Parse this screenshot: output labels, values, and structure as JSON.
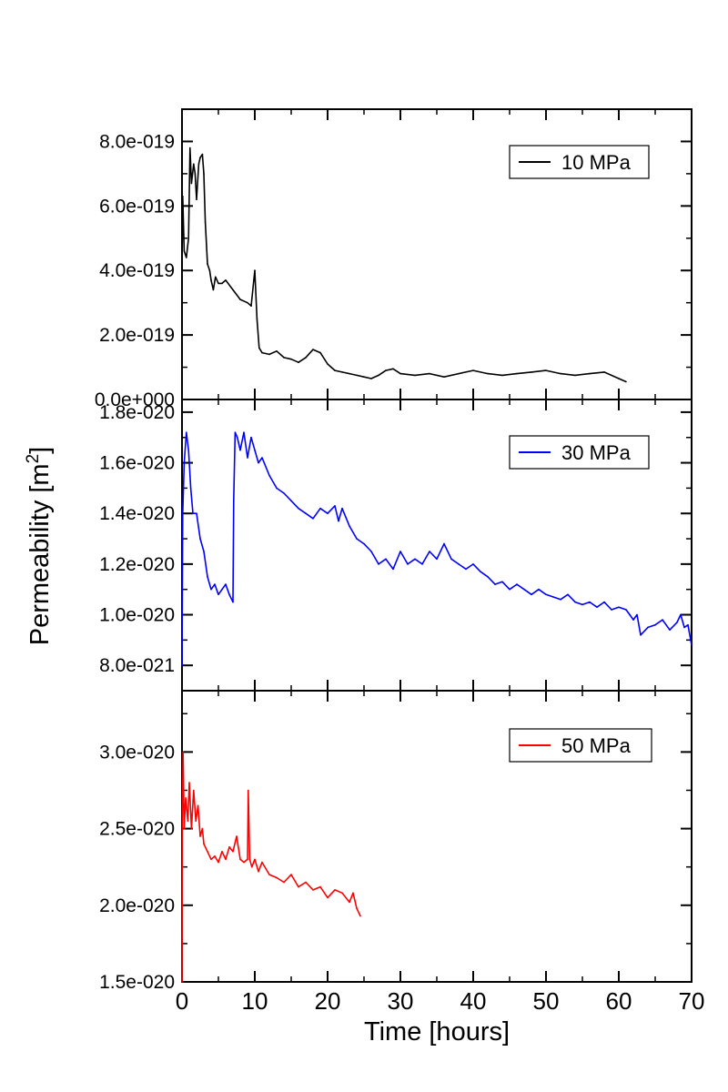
{
  "chart_data": {
    "type": "line",
    "xlabel": "Time [hours]",
    "ylabel": "Permeability [m",
    "ylabel_superscript": "2",
    "ylabel_close": "]",
    "xlim": [
      0,
      70
    ],
    "x_ticks": [
      0,
      10,
      20,
      30,
      40,
      50,
      60,
      70
    ],
    "x_tick_labels": [
      "0",
      "10",
      "20",
      "30",
      "40",
      "50",
      "60",
      "70"
    ],
    "grid": false,
    "legend_position": "top-right",
    "panels": [
      {
        "ylim": [
          0,
          9e-19
        ],
        "y_ticks": [
          0,
          2e-19,
          4e-19,
          6e-19,
          8e-19
        ],
        "y_tick_labels": [
          "0.0e+000",
          "2.0e-019",
          "4.0e-019",
          "6.0e-019",
          "8.0e-019"
        ],
        "series": [
          {
            "name": "10 MPa",
            "color": "#000000",
            "x": [
              0,
              0.1,
              0.3,
              0.6,
              0.9,
              1.1,
              1.3,
              1.6,
              1.8,
              2.0,
              2.3,
              2.5,
              2.8,
              3.0,
              3.2,
              3.5,
              3.8,
              4.0,
              4.3,
              4.6,
              5.0,
              5.5,
              6.0,
              7.0,
              8.0,
              9.0,
              9.5,
              10.0,
              10.3,
              10.6,
              11.0,
              12.0,
              13.0,
              14.0,
              15.0,
              16.0,
              17.0,
              18.0,
              19.0,
              20.0,
              21.0,
              22.0,
              23.0,
              24.0,
              25.0,
              26.0,
              27.0,
              28.0,
              29.0,
              30.0,
              32.0,
              34.0,
              36.0,
              38.0,
              40.0,
              42.0,
              44.0,
              46.0,
              48.0,
              50.0,
              52.0,
              54.0,
              56.0,
              58.0,
              60.0,
              61.0
            ],
            "y": [
              4.2e-19,
              6.3e-19,
              4.6e-19,
              4.4e-19,
              5e-19,
              7.8e-19,
              6.7e-19,
              7.3e-19,
              7e-19,
              6.2e-19,
              7.3e-19,
              7.5e-19,
              7.6e-19,
              7e-19,
              5.5e-19,
              4.2e-19,
              4e-19,
              3.7e-19,
              3.4e-19,
              3.8e-19,
              3.6e-19,
              3.6e-19,
              3.7e-19,
              3.4e-19,
              3.1e-19,
              3e-19,
              2.9e-19,
              4e-19,
              2.5e-19,
              1.6e-19,
              1.45e-19,
              1.4e-19,
              1.5e-19,
              1.3e-19,
              1.25e-19,
              1.15e-19,
              1.3e-19,
              1.55e-19,
              1.45e-19,
              1.1e-19,
              9e-20,
              8.5e-20,
              8e-20,
              7.5e-20,
              7e-20,
              6.5e-20,
              7.5e-20,
              9e-20,
              9.5e-20,
              8e-20,
              7.5e-20,
              8e-20,
              7e-20,
              8e-20,
              9e-20,
              8e-20,
              7.5e-20,
              8e-20,
              8.5e-20,
              9e-20,
              8e-20,
              7.5e-20,
              8e-20,
              8.5e-20,
              6.5e-20,
              5.5e-20
            ]
          }
        ]
      },
      {
        "ylim": [
          7e-21,
          1.85e-20
        ],
        "y_ticks": [
          8e-21,
          1e-20,
          1.2e-20,
          1.4e-20,
          1.6e-20,
          1.8e-20
        ],
        "y_tick_labels": [
          "8.0e-021",
          "1.0e-020",
          "1.2e-020",
          "1.4e-020",
          "1.6e-020",
          "1.8e-020"
        ],
        "series": [
          {
            "name": "30 MPa",
            "color": "#0000ff",
            "x": [
              0,
              0.1,
              0.3,
              0.6,
              0.9,
              1.2,
              1.5,
              2.0,
              2.5,
              3.0,
              3.5,
              4.0,
              4.5,
              5.0,
              5.5,
              6.0,
              6.5,
              7.0,
              7.1,
              7.3,
              7.6,
              8.0,
              8.5,
              9.0,
              9.5,
              10.0,
              10.5,
              11.0,
              12.0,
              13.0,
              14.0,
              15.0,
              16.0,
              17.0,
              18.0,
              19.0,
              20.0,
              21.0,
              21.5,
              22.0,
              23.0,
              24.0,
              25.0,
              26.0,
              27.0,
              28.0,
              29.0,
              30.0,
              31.0,
              32.0,
              33.0,
              34.0,
              35.0,
              36.0,
              37.0,
              38.0,
              39.0,
              40.0,
              41.0,
              42.0,
              43.0,
              44.0,
              45.0,
              46.0,
              47.0,
              48.0,
              49.0,
              50.0,
              51.0,
              52.0,
              53.0,
              54.0,
              55.0,
              56.0,
              57.0,
              58.0,
              59.0,
              60.0,
              61.0,
              61.5,
              62.0,
              62.5,
              63.0,
              64.0,
              65.0,
              66.0,
              67.0,
              68.0,
              68.5,
              69.0,
              69.5,
              70.0
            ],
            "y": [
              8e-21,
              1.4e-20,
              1.6e-20,
              1.72e-20,
              1.65e-20,
              1.5e-20,
              1.4e-20,
              1.4e-20,
              1.3e-20,
              1.25e-20,
              1.15e-20,
              1.1e-20,
              1.12e-20,
              1.08e-20,
              1.1e-20,
              1.12e-20,
              1.08e-20,
              1.05e-20,
              1.45e-20,
              1.72e-20,
              1.7e-20,
              1.65e-20,
              1.72e-20,
              1.62e-20,
              1.7e-20,
              1.65e-20,
              1.6e-20,
              1.62e-20,
              1.55e-20,
              1.5e-20,
              1.48e-20,
              1.45e-20,
              1.42e-20,
              1.4e-20,
              1.38e-20,
              1.42e-20,
              1.4e-20,
              1.43e-20,
              1.37e-20,
              1.42e-20,
              1.35e-20,
              1.3e-20,
              1.28e-20,
              1.25e-20,
              1.2e-20,
              1.22e-20,
              1.18e-20,
              1.25e-20,
              1.2e-20,
              1.22e-20,
              1.2e-20,
              1.25e-20,
              1.22e-20,
              1.28e-20,
              1.22e-20,
              1.2e-20,
              1.18e-20,
              1.2e-20,
              1.17e-20,
              1.15e-20,
              1.12e-20,
              1.13e-20,
              1.1e-20,
              1.12e-20,
              1.1e-20,
              1.08e-20,
              1.1e-20,
              1.08e-20,
              1.07e-20,
              1.06e-20,
              1.08e-20,
              1.05e-20,
              1.04e-20,
              1.05e-20,
              1.03e-20,
              1.05e-20,
              1.02e-20,
              1.03e-20,
              1.02e-20,
              1e-20,
              9.8e-21,
              1e-20,
              9.2e-21,
              9.5e-21,
              9.6e-21,
              9.8e-21,
              9.4e-21,
              9.7e-21,
              1e-20,
              9.5e-21,
              9.6e-21,
              8.8e-21
            ]
          }
        ]
      },
      {
        "ylim": [
          1.5e-20,
          3.4e-20
        ],
        "y_ticks": [
          1.5e-20,
          2e-20,
          2.5e-20,
          3e-20
        ],
        "y_tick_labels": [
          "1.5e-020",
          "2.0e-020",
          "2.5e-020",
          "3.0e-020"
        ],
        "series": [
          {
            "name": "50 MPa",
            "color": "#ff0000",
            "x": [
              0,
              0.05,
              0.15,
              0.3,
              0.5,
              0.8,
              1.0,
              1.3,
              1.6,
              1.9,
              2.2,
              2.5,
              2.8,
              3.0,
              3.5,
              4.0,
              4.5,
              5.0,
              5.5,
              6.0,
              6.5,
              7.0,
              7.5,
              8.0,
              8.5,
              9.0,
              9.1,
              9.3,
              9.6,
              10.0,
              10.5,
              11.0,
              12.0,
              13.0,
              14.0,
              15.0,
              16.0,
              17.0,
              18.0,
              19.0,
              20.0,
              21.0,
              22.0,
              23.0,
              23.5,
              24.0,
              24.5
            ],
            "y": [
              1.5e-20,
              2.6e-20,
              3e-20,
              2.5e-20,
              2.7e-20,
              2.55e-20,
              2.8e-20,
              2.5e-20,
              2.75e-20,
              2.55e-20,
              2.65e-20,
              2.45e-20,
              2.5e-20,
              2.4e-20,
              2.35e-20,
              2.3e-20,
              2.32e-20,
              2.28e-20,
              2.35e-20,
              2.3e-20,
              2.38e-20,
              2.35e-20,
              2.45e-20,
              2.3e-20,
              2.28e-20,
              2.3e-20,
              2.75e-20,
              2.3e-20,
              2.25e-20,
              2.3e-20,
              2.22e-20,
              2.28e-20,
              2.2e-20,
              2.18e-20,
              2.15e-20,
              2.2e-20,
              2.12e-20,
              2.15e-20,
              2.1e-20,
              2.12e-20,
              2.05e-20,
              2.1e-20,
              2.08e-20,
              2.02e-20,
              2.08e-20,
              1.98e-20,
              1.93e-20
            ]
          }
        ]
      }
    ]
  }
}
